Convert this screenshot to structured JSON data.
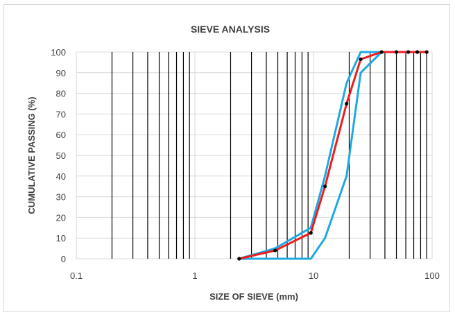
{
  "chart_data": {
    "type": "line",
    "title": "SIEVE ANALYSIS",
    "xlabel": "SIZE OF SIEVE (mm)",
    "ylabel": "CUMULATIVE PASSING  (%)",
    "x_scale": "log",
    "xlim": [
      0.1,
      100
    ],
    "ylim": [
      0,
      100
    ],
    "x_ticks": [
      0.1,
      1,
      10,
      100
    ],
    "x_tick_labels": [
      "0.1",
      "1",
      "10",
      "100"
    ],
    "y_ticks": [
      0,
      10,
      20,
      30,
      40,
      50,
      60,
      70,
      80,
      90,
      100
    ],
    "y_tick_labels": [
      "0",
      "10",
      "20",
      "30",
      "40",
      "50",
      "60",
      "70",
      "80",
      "90",
      "100"
    ],
    "grid": true,
    "sieve_lines": [
      0.2,
      0.3,
      0.4,
      0.5,
      0.6,
      0.7,
      0.8,
      0.9,
      2,
      3,
      4,
      5,
      6,
      7,
      8,
      9,
      20,
      30,
      40,
      50,
      60,
      70,
      80,
      90
    ],
    "series": [
      {
        "color": "#ee1c1c",
        "markers": true,
        "x": [
          2.36,
          4.75,
          9.5,
          12.5,
          19,
          25,
          37.5,
          50,
          63,
          75,
          90
        ],
        "y": [
          0,
          4,
          12.5,
          35,
          75,
          96.5,
          100,
          100,
          100,
          100,
          100
        ]
      },
      {
        "color": "#1fa9e1",
        "markers": false,
        "x": [
          2.36,
          4.75,
          9.5,
          12.5,
          19,
          25,
          37.5,
          90
        ],
        "y": [
          0,
          5,
          15,
          40,
          85,
          100,
          100,
          100
        ]
      },
      {
        "color": "#1fa9e1",
        "markers": false,
        "x": [
          2.36,
          9.5,
          12.5,
          19,
          25,
          37.5,
          90
        ],
        "y": [
          0,
          0,
          10,
          40,
          90,
          100,
          100
        ]
      }
    ]
  }
}
